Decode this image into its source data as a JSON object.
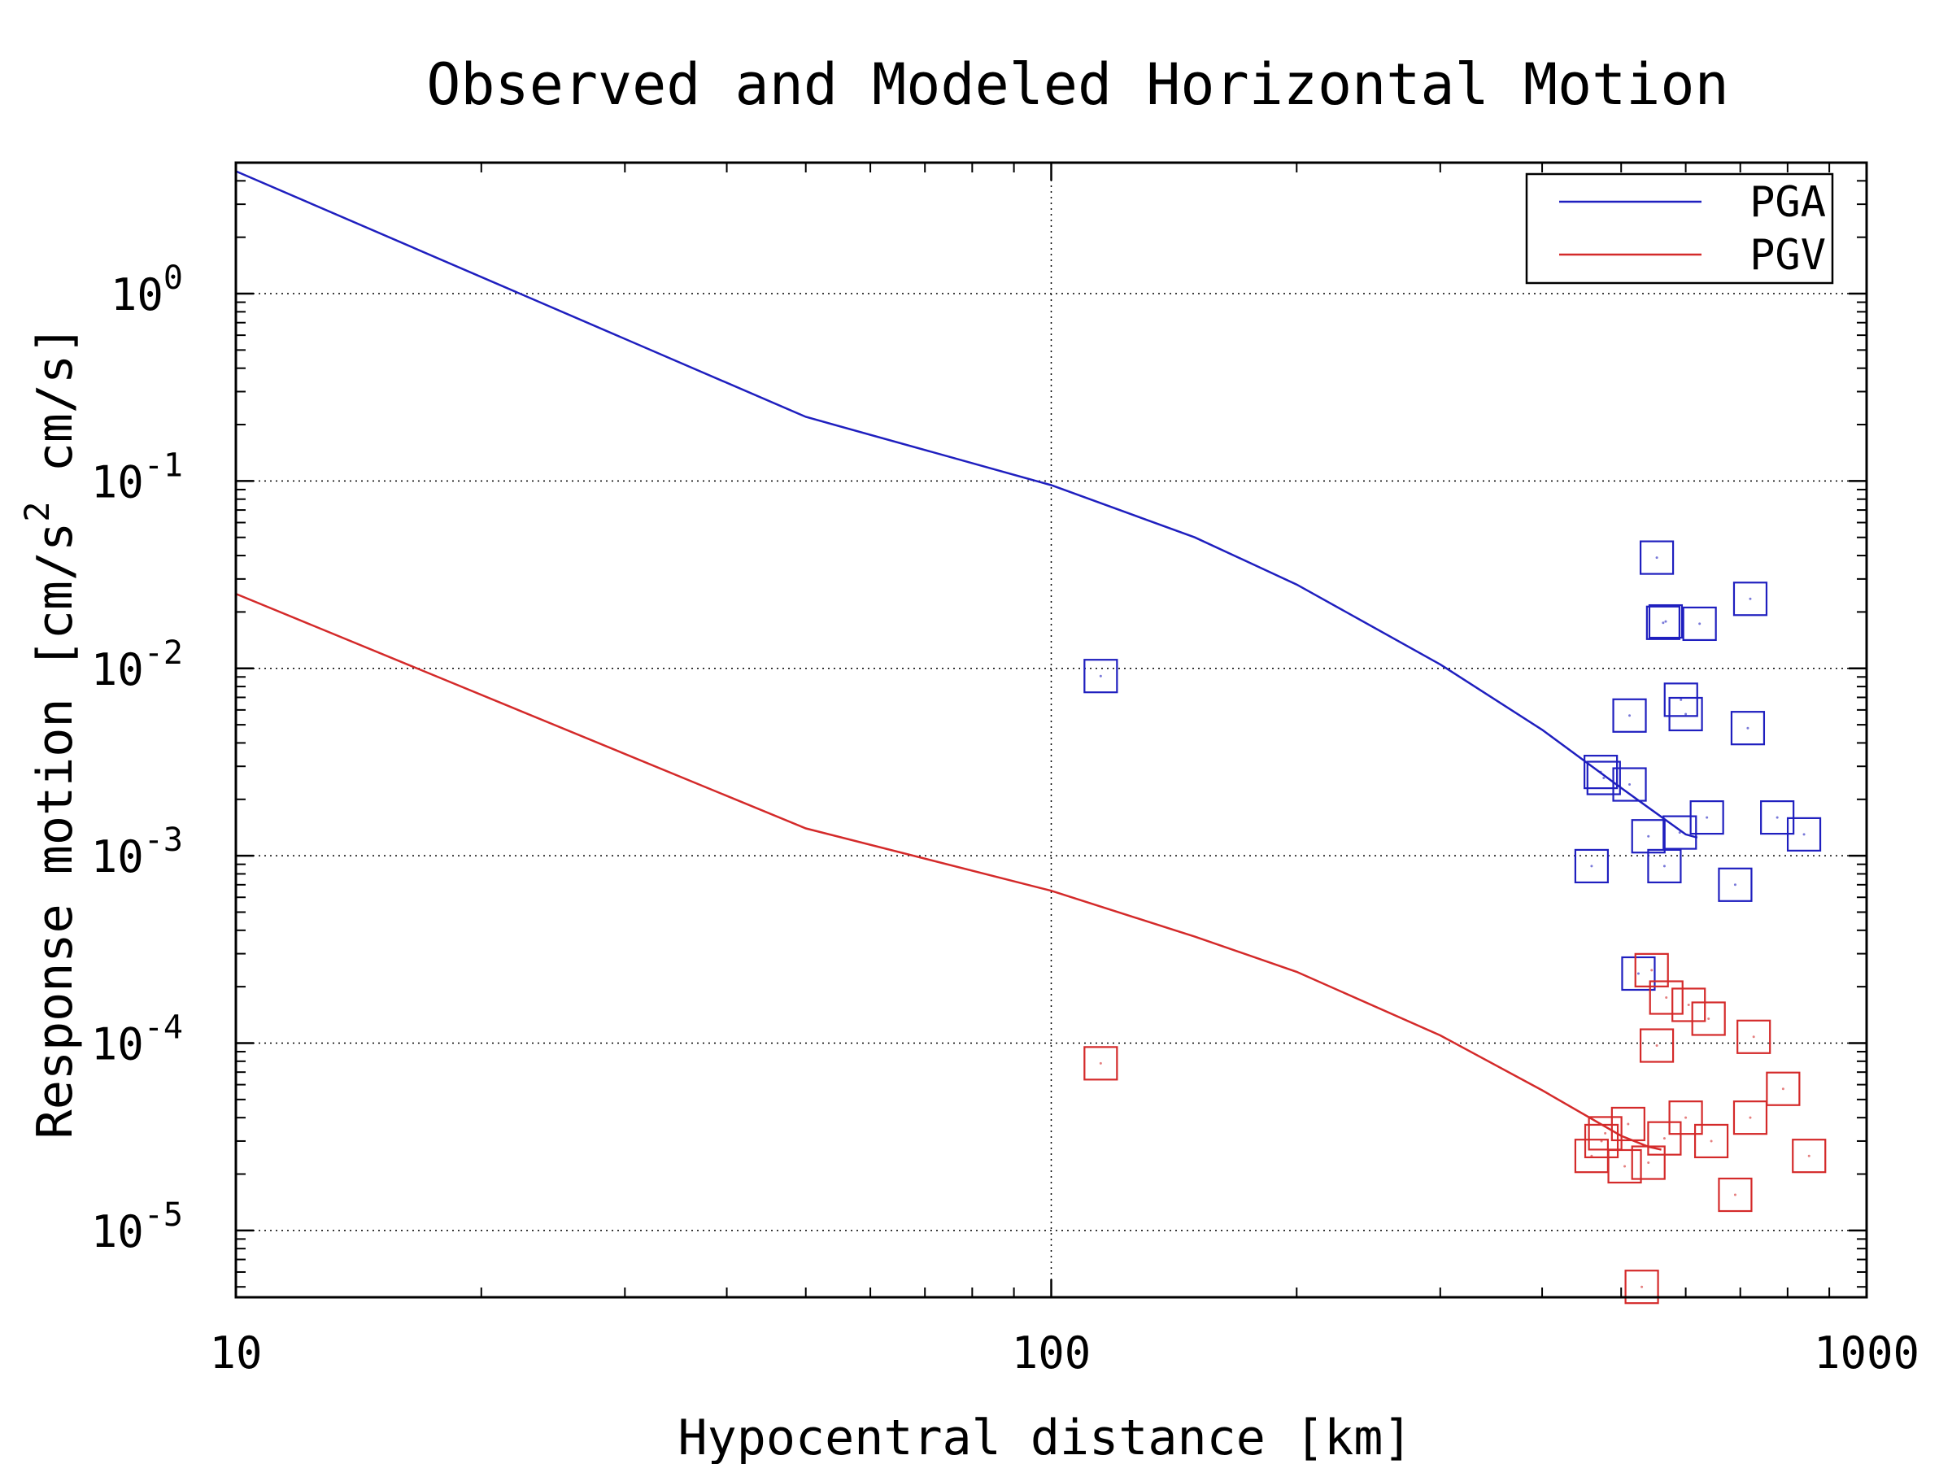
{
  "chart_data": {
    "type": "line+scatter",
    "title": "Observed and Modeled Horizontal Motion",
    "xlabel": "Hypocentral distance [km]",
    "ylabel": {
      "main": "Response motion [cm/s",
      "sup": "2",
      "rest": " cm/s]"
    },
    "x_scale": "log",
    "y_scale": "log",
    "xlim": [
      10,
      1000
    ],
    "ylim": [
      4.4e-06,
      5.0
    ],
    "x_ticks": [
      {
        "value": 10,
        "label": "10"
      },
      {
        "value": 100,
        "label": "100"
      },
      {
        "value": 1000,
        "label": "1000"
      }
    ],
    "y_ticks": [
      {
        "value": 1,
        "base": "10",
        "exp": "0"
      },
      {
        "value": 0.1,
        "base": "10",
        "exp": "-1"
      },
      {
        "value": 0.01,
        "base": "10",
        "exp": "-2"
      },
      {
        "value": 0.001,
        "base": "10",
        "exp": "-3"
      },
      {
        "value": 0.0001,
        "base": "10",
        "exp": "-4"
      },
      {
        "value": 1e-05,
        "base": "10",
        "exp": "-5"
      }
    ],
    "grid": true,
    "legend_position": "top-right",
    "series": [
      {
        "name": "PGA",
        "color": "#1f1fbf",
        "model_line": {
          "x": [
            10,
            50,
            100,
            150,
            200,
            300,
            400,
            500,
            600,
            620
          ],
          "y": [
            4.5,
            0.22,
            0.095,
            0.05,
            0.028,
            0.0105,
            0.0047,
            0.0023,
            0.0013,
            0.00125
          ]
        },
        "observed": {
          "x": [
            115,
            553,
            720,
            563,
            567,
            624,
            715,
            512,
            592,
            600,
            472,
            476,
            512,
            637,
            777,
            838,
            540,
            590,
            460,
            565,
            690,
            525
          ],
          "y": [
            0.0091,
            0.039,
            0.0235,
            0.0175,
            0.0178,
            0.0173,
            0.0048,
            0.0056,
            0.0068,
            0.0057,
            0.0028,
            0.0026,
            0.0024,
            0.0016,
            0.0016,
            0.0013,
            0.00127,
            0.00133,
            0.00088,
            0.00088,
            0.0007,
            0.000235
          ]
        }
      },
      {
        "name": "PGV",
        "color": "#d42a2a",
        "model_line": {
          "x": [
            10,
            50,
            100,
            150,
            200,
            300,
            400,
            500,
            540,
            560
          ],
          "y": [
            0.025,
            0.0014,
            0.00065,
            0.00037,
            0.00024,
            0.00011,
            5.6e-05,
            3.2e-05,
            2.8e-05,
            2.7e-05
          ]
        },
        "observed": {
          "x": [
            115,
            545,
            568,
            605,
            640,
            727,
            553,
            790,
            510,
            478,
            473,
            565,
            600,
            645,
            720,
            850,
            460,
            505,
            540,
            690,
            530
          ],
          "y": [
            7.8e-05,
            0.000245,
            0.000175,
            0.00016,
            0.000135,
            0.000108,
            9.7e-05,
            5.7e-05,
            3.7e-05,
            3.3e-05,
            3e-05,
            3.1e-05,
            4e-05,
            3e-05,
            4e-05,
            2.5e-05,
            2.5e-05,
            2.2e-05,
            2.3e-05,
            1.55e-05,
            5e-06
          ]
        }
      }
    ]
  }
}
